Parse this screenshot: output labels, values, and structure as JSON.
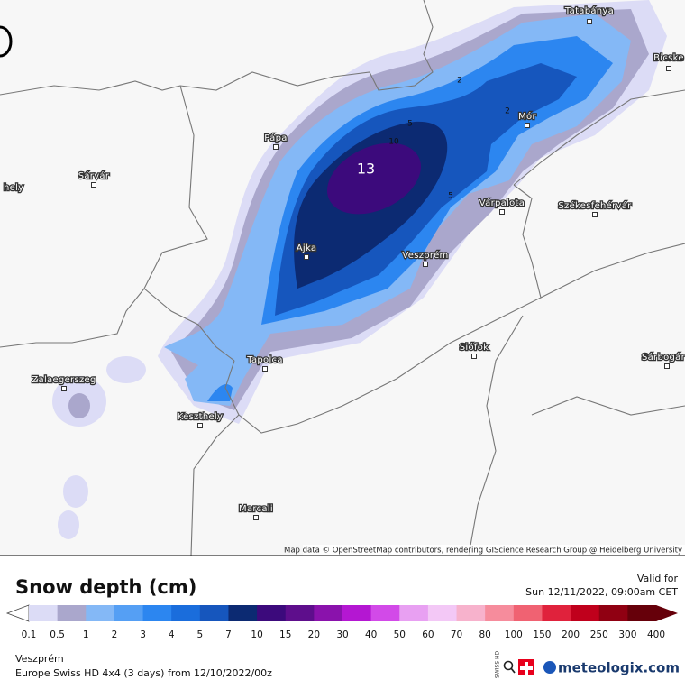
{
  "map": {
    "cities": [
      "Tatabánya",
      "Bicske",
      "Mór",
      "Pápa",
      "Sárvár",
      "hely",
      "Várpalota",
      "Székesfehérvár",
      "Ajka",
      "Veszprém",
      "Zalaegerszeg",
      "Tapolca",
      "Siófok",
      "Sárbogár",
      "Keszthely",
      "Marcali"
    ],
    "contour_labels": [
      "13",
      "10",
      "5",
      "2",
      "2",
      "5"
    ],
    "attribution": "Map data © OpenStreetMap contributors, rendering GIScience Research Group @ Heidelberg University"
  },
  "header": {
    "title": "Snow depth (cm)",
    "valid_label": "Valid for",
    "valid_time": "Sun 12/11/2022, 09:00am CET"
  },
  "legend": {
    "labels": [
      "0.1",
      "0.5",
      "1",
      "2",
      "3",
      "4",
      "5",
      "7",
      "10",
      "15",
      "20",
      "30",
      "40",
      "50",
      "60",
      "70",
      "80",
      "100",
      "150",
      "200",
      "250",
      "300",
      "400"
    ],
    "colors": [
      "#dcdcf6",
      "#aaa7cc",
      "#84b8f6",
      "#559ff4",
      "#2c86f0",
      "#1a6ddc",
      "#1656bd",
      "#0c2a72",
      "#3c0a7c",
      "#5e0e8c",
      "#8a12ac",
      "#b417d2",
      "#d24ae8",
      "#e8a0f2",
      "#f3c8f6",
      "#f7b2cc",
      "#f68c9c",
      "#f06272",
      "#e0223c",
      "#c0001c",
      "#900012",
      "#66000a"
    ]
  },
  "footer": {
    "location": "Veszprém",
    "model": "Europe Swiss HD 4x4 (3 days) from 12/10/2022/00z",
    "brand": "meteologix.com",
    "badge": "SWISS HD"
  }
}
